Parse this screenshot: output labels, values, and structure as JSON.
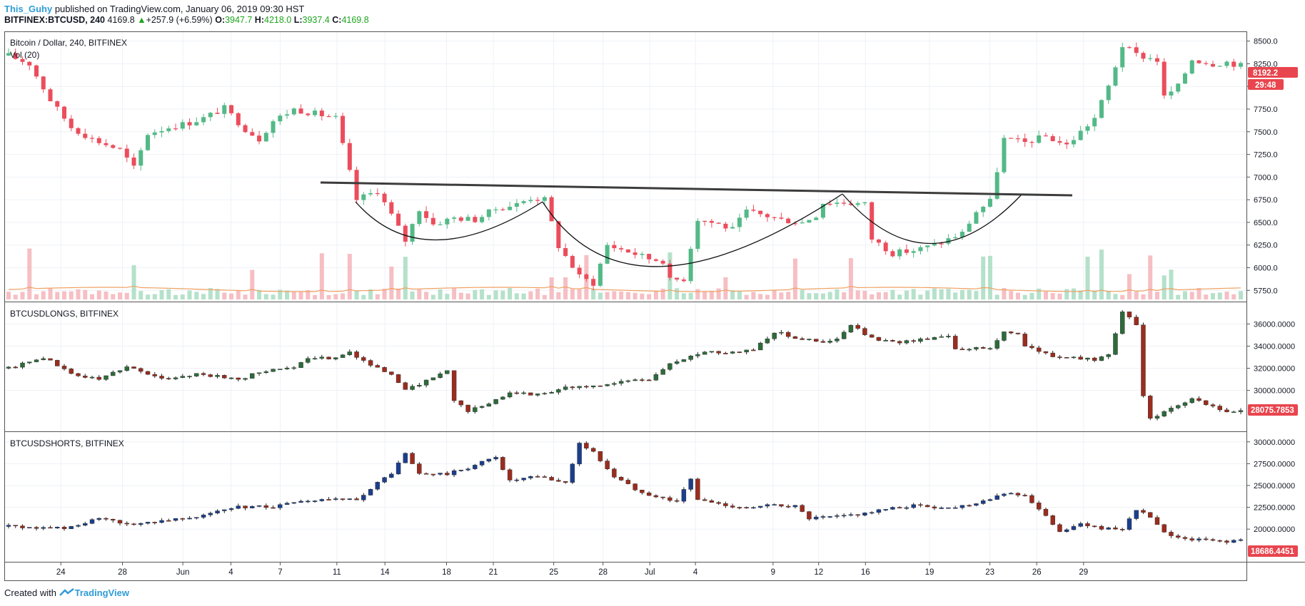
{
  "header": {
    "author": "This_Guhy",
    "published": "published on TradingView.com, January 06, 2019 09:30 HST",
    "symbol": "BITFINEX:BTCUSD, 240",
    "last": "4169.8",
    "change_arrow": "▲",
    "change": "+257.9 (+6.59%)",
    "o_label": "O:",
    "o": "3947.7",
    "h_label": "H:",
    "h": "4218.0",
    "l_label": "L:",
    "l": "3937.4",
    "c_label": "C:",
    "c": "4169.8"
  },
  "footer": {
    "created_with": "Created with",
    "brand": "TradingView"
  },
  "colors": {
    "up": "#53b987",
    "down": "#eb4d5c",
    "grid": "#eef1f6",
    "label": "#e8454e"
  },
  "chart_data": [
    {
      "type": "candlestick",
      "title": "Bitcoin / Dollar, 240, BITFINEX",
      "subtitle": "Vol (20)",
      "ylim": [
        5650,
        8560
      ],
      "yticks": [
        "8500.0",
        "8250.0",
        "8000.0",
        "7750.0",
        "7500.0",
        "7250.0",
        "7000.0",
        "6750.0",
        "6500.0",
        "6250.0",
        "6000.0",
        "5750.0"
      ],
      "xticks": [
        "24",
        "28",
        "Jun",
        "4",
        "7",
        "11",
        "14",
        "18",
        "21",
        "25",
        "28",
        "Jul",
        "4",
        "9",
        "12",
        "16",
        "19",
        "23",
        "26",
        "29"
      ],
      "last_price": "8192.2",
      "countdown": "29:48",
      "path": [
        [
          0,
          8340
        ],
        [
          3,
          8250
        ],
        [
          6,
          7850
        ],
        [
          9,
          7550
        ],
        [
          12,
          7420
        ],
        [
          16,
          7300
        ],
        [
          18,
          7100
        ],
        [
          20,
          7480
        ],
        [
          23,
          7550
        ],
        [
          26,
          7600
        ],
        [
          28,
          7650
        ],
        [
          31,
          7760
        ],
        [
          34,
          7530
        ],
        [
          36,
          7420
        ],
        [
          38,
          7620
        ],
        [
          41,
          7750
        ],
        [
          44,
          7700
        ],
        [
          47,
          7650
        ],
        [
          50,
          6750
        ],
        [
          53,
          6850
        ],
        [
          55,
          6580
        ],
        [
          57,
          6300
        ],
        [
          59,
          6650
        ],
        [
          61,
          6480
        ],
        [
          64,
          6550
        ],
        [
          67,
          6530
        ],
        [
          70,
          6650
        ],
        [
          73,
          6700
        ],
        [
          75,
          6770
        ],
        [
          77,
          6750
        ],
        [
          79,
          6240
        ],
        [
          82,
          5900
        ],
        [
          84,
          5830
        ],
        [
          86,
          6250
        ],
        [
          89,
          6180
        ],
        [
          92,
          6100
        ],
        [
          94,
          6080
        ],
        [
          95,
          5860
        ],
        [
          97,
          5880
        ],
        [
          98,
          6230
        ],
        [
          99,
          6540
        ],
        [
          102,
          6480
        ],
        [
          104,
          6420
        ],
        [
          106,
          6620
        ],
        [
          109,
          6570
        ],
        [
          111,
          6530
        ],
        [
          114,
          6500
        ],
        [
          116,
          6580
        ],
        [
          117,
          6720
        ],
        [
          120,
          6720
        ],
        [
          123,
          6700
        ],
        [
          124,
          6320
        ],
        [
          127,
          6160
        ],
        [
          130,
          6190
        ],
        [
          133,
          6250
        ],
        [
          137,
          6380
        ],
        [
          139,
          6620
        ],
        [
          141,
          6730
        ],
        [
          143,
          7420
        ],
        [
          146,
          7380
        ],
        [
          149,
          7450
        ],
        [
          152,
          7350
        ],
        [
          154,
          7500
        ],
        [
          156,
          7650
        ],
        [
          158,
          8000
        ],
        [
          160,
          8450
        ],
        [
          162,
          8350
        ],
        [
          165,
          8290
        ],
        [
          166,
          7880
        ],
        [
          168,
          8000
        ],
        [
          170,
          8300
        ],
        [
          173,
          8250
        ],
        [
          175,
          8270
        ],
        [
          177,
          8230
        ]
      ],
      "vol_spikes": [
        3,
        18,
        35,
        45,
        49,
        55,
        57,
        78,
        80,
        83,
        95,
        103,
        113,
        121,
        140,
        141,
        155,
        157,
        161,
        164,
        166,
        167
      ]
    },
    {
      "type": "candlestick",
      "title": "BTCUSDLONGS, BITFINEX",
      "ylim": [
        26500,
        37700
      ],
      "yticks": [
        "36000.0000",
        "34000.0000",
        "32000.0000",
        "30000.0000"
      ],
      "last_value": "28075.7853",
      "path": [
        [
          0,
          32000
        ],
        [
          5,
          33000
        ],
        [
          9,
          31500
        ],
        [
          13,
          31000
        ],
        [
          17,
          32200
        ],
        [
          22,
          31000
        ],
        [
          27,
          31500
        ],
        [
          33,
          31000
        ],
        [
          38,
          32000
        ],
        [
          41,
          32000
        ],
        [
          43,
          32800
        ],
        [
          47,
          33000
        ],
        [
          49,
          33500
        ],
        [
          52,
          32300
        ],
        [
          55,
          31300
        ],
        [
          57,
          30200
        ],
        [
          59,
          30500
        ],
        [
          62,
          31500
        ],
        [
          63,
          31800
        ],
        [
          64,
          29000
        ],
        [
          66,
          28200
        ],
        [
          69,
          28700
        ],
        [
          72,
          29900
        ],
        [
          76,
          29600
        ],
        [
          80,
          30300
        ],
        [
          84,
          30300
        ],
        [
          88,
          30800
        ],
        [
          92,
          31000
        ],
        [
          95,
          32400
        ],
        [
          98,
          33000
        ],
        [
          100,
          33600
        ],
        [
          103,
          33400
        ],
        [
          107,
          33700
        ],
        [
          110,
          35300
        ],
        [
          113,
          34800
        ],
        [
          117,
          34300
        ],
        [
          119,
          34600
        ],
        [
          121,
          35900
        ],
        [
          124,
          34700
        ],
        [
          127,
          34300
        ],
        [
          131,
          34600
        ],
        [
          135,
          35000
        ],
        [
          136,
          33800
        ],
        [
          141,
          33800
        ],
        [
          143,
          35300
        ],
        [
          145,
          35200
        ],
        [
          146,
          34000
        ],
        [
          150,
          33100
        ],
        [
          153,
          32900
        ],
        [
          156,
          32800
        ],
        [
          158,
          33300
        ],
        [
          160,
          37200
        ],
        [
          162,
          35800
        ],
        [
          163,
          29500
        ],
        [
          164,
          27600
        ],
        [
          166,
          28000
        ],
        [
          168,
          28600
        ],
        [
          170,
          29200
        ],
        [
          172,
          28700
        ],
        [
          175,
          28100
        ],
        [
          177,
          28100
        ]
      ]
    },
    {
      "type": "candlestick",
      "title": "BTCUSDSHORTS, BITFINEX",
      "ylim": [
        16500,
        30800
      ],
      "yticks": [
        "30000.0000",
        "27500.0000",
        "25000.0000",
        "22500.0000",
        "20000.0000"
      ],
      "last_value": "18686.4451",
      "path": [
        [
          0,
          20300
        ],
        [
          5,
          20100
        ],
        [
          9,
          20200
        ],
        [
          13,
          21200
        ],
        [
          17,
          20500
        ],
        [
          22,
          21000
        ],
        [
          27,
          21500
        ],
        [
          33,
          22500
        ],
        [
          38,
          22600
        ],
        [
          45,
          23400
        ],
        [
          50,
          23300
        ],
        [
          52,
          24700
        ],
        [
          55,
          26400
        ],
        [
          57,
          28600
        ],
        [
          59,
          26300
        ],
        [
          63,
          26300
        ],
        [
          66,
          27000
        ],
        [
          70,
          28300
        ],
        [
          72,
          25500
        ],
        [
          76,
          26000
        ],
        [
          80,
          25300
        ],
        [
          82,
          29800
        ],
        [
          84,
          28800
        ],
        [
          87,
          26000
        ],
        [
          90,
          24600
        ],
        [
          93,
          23700
        ],
        [
          96,
          23200
        ],
        [
          98,
          25700
        ],
        [
          99,
          23400
        ],
        [
          103,
          22700
        ],
        [
          107,
          22400
        ],
        [
          110,
          22800
        ],
        [
          113,
          22600
        ],
        [
          115,
          21200
        ],
        [
          119,
          21400
        ],
        [
          122,
          21700
        ],
        [
          125,
          22100
        ],
        [
          130,
          22700
        ],
        [
          135,
          22400
        ],
        [
          139,
          23000
        ],
        [
          143,
          24100
        ],
        [
          146,
          23900
        ],
        [
          148,
          22200
        ],
        [
          151,
          19800
        ],
        [
          154,
          20500
        ],
        [
          158,
          20000
        ],
        [
          160,
          19800
        ],
        [
          162,
          22300
        ],
        [
          164,
          21300
        ],
        [
          166,
          19500
        ],
        [
          169,
          18900
        ],
        [
          172,
          18700
        ],
        [
          175,
          18600
        ],
        [
          177,
          18700
        ]
      ]
    }
  ]
}
